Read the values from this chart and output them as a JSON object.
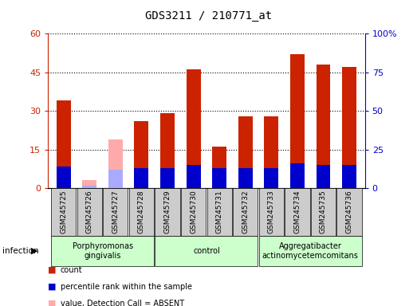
{
  "title": "GDS3211 / 210771_at",
  "samples": [
    "GSM245725",
    "GSM245726",
    "GSM245727",
    "GSM245728",
    "GSM245729",
    "GSM245730",
    "GSM245731",
    "GSM245732",
    "GSM245733",
    "GSM245734",
    "GSM245735",
    "GSM245736"
  ],
  "count_values": [
    34,
    0,
    0,
    26,
    29,
    46,
    16,
    28,
    28,
    52,
    48,
    47
  ],
  "rank_values": [
    14,
    0,
    0,
    13,
    13,
    15,
    13,
    13,
    13,
    16,
    15,
    15
  ],
  "absent_count": [
    0,
    3,
    19,
    0,
    0,
    0,
    0,
    0,
    0,
    0,
    0,
    0
  ],
  "absent_rank": [
    0,
    1.5,
    12,
    0,
    0,
    0,
    0,
    0,
    0,
    0,
    0,
    0
  ],
  "is_absent": [
    false,
    true,
    true,
    false,
    false,
    false,
    false,
    false,
    false,
    false,
    false,
    false
  ],
  "groups": [
    {
      "label": "Porphyromonas\ngingivalis",
      "start": 0,
      "end": 3
    },
    {
      "label": "control",
      "start": 4,
      "end": 7
    },
    {
      "label": "Aggregatibacter\nactinomycetemcomitans",
      "start": 8,
      "end": 11
    }
  ],
  "group_factor": "infection",
  "ylim_left": [
    0,
    60
  ],
  "ylim_right": [
    0,
    100
  ],
  "yticks_left": [
    0,
    15,
    30,
    45,
    60
  ],
  "yticks_right": [
    0,
    25,
    50,
    75,
    100
  ],
  "bar_color_count": "#cc2200",
  "bar_color_rank": "#0000cc",
  "bar_color_absent_count": "#ffaaaa",
  "bar_color_absent_rank": "#aaaaff",
  "sample_box_color": "#cccccc",
  "group_box_color": "#ccffcc",
  "plot_bg": "#ffffff"
}
